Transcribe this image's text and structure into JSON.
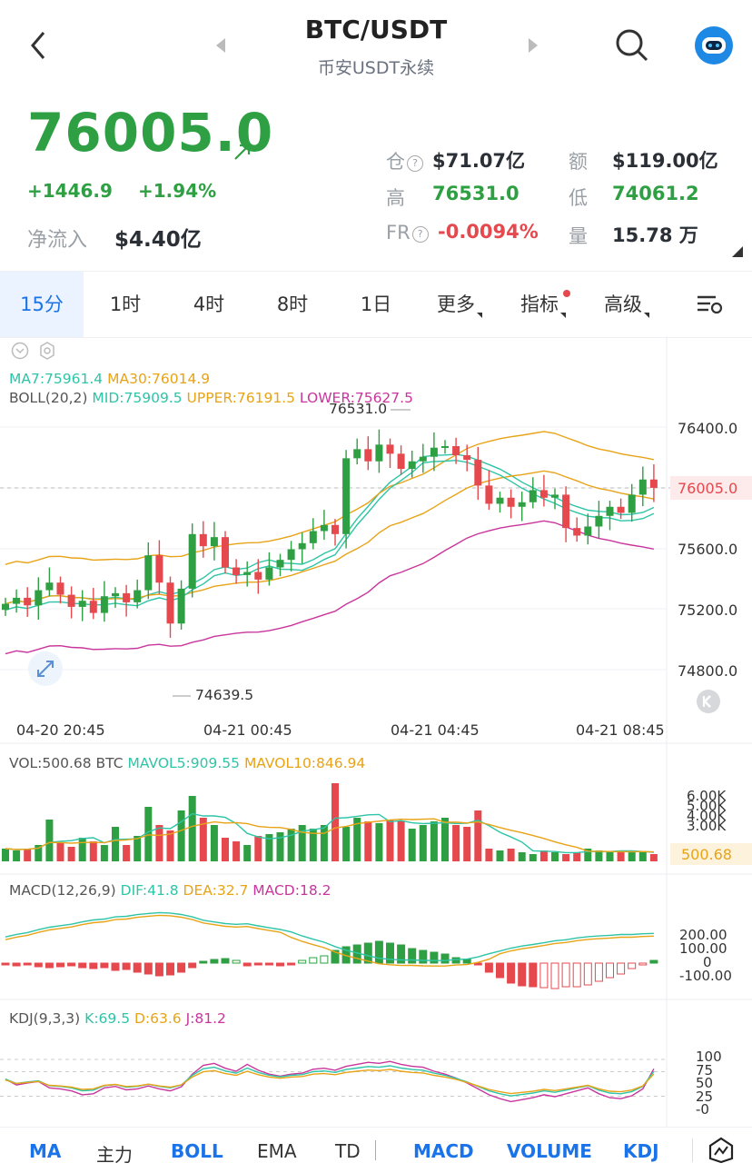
{
  "header": {
    "title": "BTC/USDT",
    "subtitle": "币安USDT永续"
  },
  "ticker": {
    "price": "76005.0",
    "change": "+1446.9",
    "change_pct": "+1.94%",
    "inflow_label": "净流入",
    "inflow_value": "$4.40亿",
    "stats": {
      "oi_label": "仓",
      "oi_value": "$71.07亿",
      "amount_label": "额",
      "amount_value": "$119.00亿",
      "high_label": "高",
      "high_value": "76531.0",
      "low_label": "低",
      "low_value": "74061.2",
      "fr_label": "FR",
      "fr_value": "-0.0094%",
      "vol_label": "量",
      "vol_value": "15.78 万"
    }
  },
  "tabs": [
    "15分",
    "1时",
    "4时",
    "8时",
    "1日",
    "更多",
    "指标",
    "高级"
  ],
  "main_chart": {
    "ma_line": {
      "ma7": "MA7:75961.4",
      "ma30": "MA30:76014.9"
    },
    "boll_line": {
      "name": "BOLL(20,2)",
      "mid": "MID:75909.5",
      "upper": "UPPER:76191.5",
      "lower": "LOWER:75627.5"
    },
    "high_marker": "76531.0",
    "low_marker": "74639.5",
    "last_price": "76005.0",
    "y_ticks": [
      "76400.0",
      "76000.0",
      "75600.0",
      "75200.0",
      "74800.0"
    ],
    "x_ticks": [
      "04-20 20:45",
      "04-21 00:45",
      "04-21 04:45",
      "04-21 08:45"
    ]
  },
  "volume": {
    "label": "VOL:500.68 BTC",
    "mavol5": "MAVOL5:909.55",
    "mavol10": "MAVOL10:846.94",
    "ticks": [
      "6.00K",
      "5.00K",
      "4.00K",
      "3.00K"
    ],
    "last": "500.68"
  },
  "macd": {
    "label": "MACD(12,26,9)",
    "dif": "DIF:41.8",
    "dea": "DEA:32.7",
    "macd": "MACD:18.2",
    "ticks": [
      "200.00",
      "100.00",
      "0",
      "-100.00"
    ]
  },
  "kdj": {
    "label": "KDJ(9,3,3)",
    "k": "K:69.5",
    "d": "D:63.6",
    "j": "J:81.2",
    "ticks": [
      "100",
      "75",
      "50",
      "25",
      "-0"
    ]
  },
  "bottom_bar": [
    "MA",
    "主力",
    "BOLL",
    "EMA",
    "TD",
    "MACD",
    "VOLUME",
    "KDJ"
  ],
  "colors": {
    "up": "#2ea043",
    "down": "#e5484d",
    "accent": "#1a73e8",
    "ma7": "#2ec4a7",
    "ma30": "#e8a317",
    "lower": "#c9359c"
  }
}
